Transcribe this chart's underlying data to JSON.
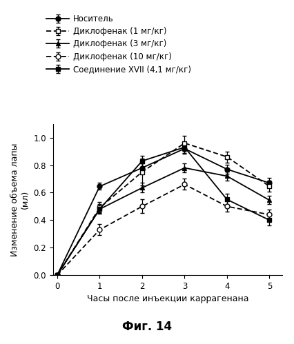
{
  "x": [
    0,
    1,
    2,
    3,
    4,
    5
  ],
  "series": [
    {
      "label": "Носитель",
      "y": [
        0.0,
        0.645,
        0.78,
        0.92,
        0.77,
        0.67
      ],
      "yerr": [
        0.0,
        0.025,
        0.035,
        0.035,
        0.035,
        0.035
      ],
      "color": "#000000",
      "marker": "o",
      "markerfacecolor": "#000000",
      "dashes": null
    },
    {
      "label": "Диклофенак (1 мг/кг)",
      "y": [
        0.0,
        0.49,
        0.75,
        0.96,
        0.86,
        0.645
      ],
      "yerr": [
        0.0,
        0.04,
        0.1,
        0.055,
        0.04,
        0.04
      ],
      "color": "#000000",
      "marker": "s",
      "markerfacecolor": "#ffffff",
      "dashes": [
        4,
        2
      ]
    },
    {
      "label": "Диклофенак (3 мг/кг)",
      "y": [
        0.0,
        0.48,
        0.635,
        0.78,
        0.72,
        0.545
      ],
      "yerr": [
        0.0,
        0.025,
        0.035,
        0.035,
        0.035,
        0.03
      ],
      "color": "#000000",
      "marker": "^",
      "markerfacecolor": "#000000",
      "dashes": null
    },
    {
      "label": "Диклофенак (10 мг/кг)",
      "y": [
        0.0,
        0.33,
        0.5,
        0.66,
        0.5,
        0.44
      ],
      "yerr": [
        0.0,
        0.04,
        0.05,
        0.04,
        0.04,
        0.035
      ],
      "color": "#000000",
      "marker": "o",
      "markerfacecolor": "#ffffff",
      "dashes": [
        4,
        2
      ]
    },
    {
      "label": "Соединение XVII (4,1 мг/кг)",
      "y": [
        0.0,
        0.48,
        0.83,
        0.93,
        0.55,
        0.4
      ],
      "yerr": [
        0.0,
        0.035,
        0.04,
        0.04,
        0.04,
        0.04
      ],
      "color": "#000000",
      "marker": "s",
      "markerfacecolor": "#000000",
      "dashes": null
    }
  ],
  "xlabel": "Часы после инъекции каррагенана",
  "ylabel": "Изменение объема лапы\n(мл)",
  "xlim": [
    -0.1,
    5.3
  ],
  "ylim": [
    0.0,
    1.1
  ],
  "yticks": [
    0.0,
    0.2,
    0.4,
    0.6,
    0.8,
    1.0
  ],
  "xticks": [
    0,
    1,
    2,
    3,
    4,
    5
  ],
  "figure_caption": "Фиг. 14"
}
